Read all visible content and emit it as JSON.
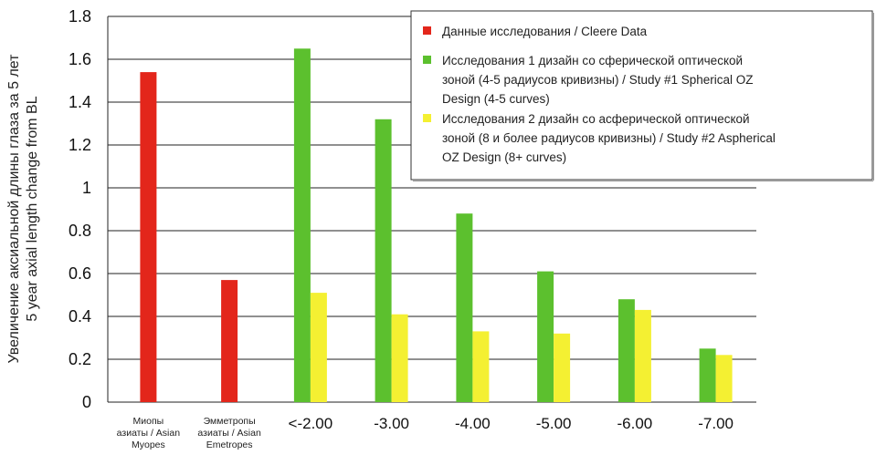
{
  "chart_data": {
    "type": "bar",
    "ylabel_lines": [
      "Увеличение аксиальной длины глаза за 5 лет",
      "5 year axial length change from BL"
    ],
    "xlabel": "",
    "ylim": [
      0,
      1.8
    ],
    "yticks": [
      "0",
      "0.2",
      "0.4",
      "0.6",
      "0.8",
      "1",
      "1.2",
      "1.4",
      "1.6",
      "1.8"
    ],
    "grid": "horizontal",
    "legend_position": "top-right",
    "categories": [
      {
        "label_lines": [
          "Миопы",
          "азиаты / Asian",
          "Myopes"
        ],
        "size": "small"
      },
      {
        "label_lines": [
          "Эмметропы",
          "азиаты / Asian",
          "Emetropes"
        ],
        "size": "small"
      },
      {
        "label_lines": [
          "<-2.00"
        ],
        "size": "big"
      },
      {
        "label_lines": [
          "-3.00"
        ],
        "size": "big"
      },
      {
        "label_lines": [
          "-4.00"
        ],
        "size": "big"
      },
      {
        "label_lines": [
          "-5.00"
        ],
        "size": "big"
      },
      {
        "label_lines": [
          "-6.00"
        ],
        "size": "big"
      },
      {
        "label_lines": [
          "-7.00"
        ],
        "size": "big"
      }
    ],
    "series": [
      {
        "name_lines": [
          "Данные исследования / Cleere Data"
        ],
        "color": "#e3261b",
        "values": [
          1.54,
          0.57,
          null,
          null,
          null,
          null,
          null,
          null
        ]
      },
      {
        "name_lines": [
          "Исследования 1 дизайн со сферической оптической",
          "зоной (4-5 радиусов кривизны) / Study #1 Spherical OZ",
          "Design (4-5 curves)"
        ],
        "color": "#5cc02e",
        "values": [
          null,
          null,
          1.65,
          1.32,
          0.88,
          0.61,
          0.48,
          0.25
        ]
      },
      {
        "name_lines": [
          "Исследования 2 дизайн со асферической оптической",
          "зоной (8 и более радиусов кривизны) / Study #2 Aspherical",
          "OZ Design (8+ curves)"
        ],
        "color": "#f4f032",
        "values": [
          null,
          null,
          0.51,
          0.41,
          0.33,
          0.32,
          0.43,
          0.22
        ]
      }
    ]
  }
}
